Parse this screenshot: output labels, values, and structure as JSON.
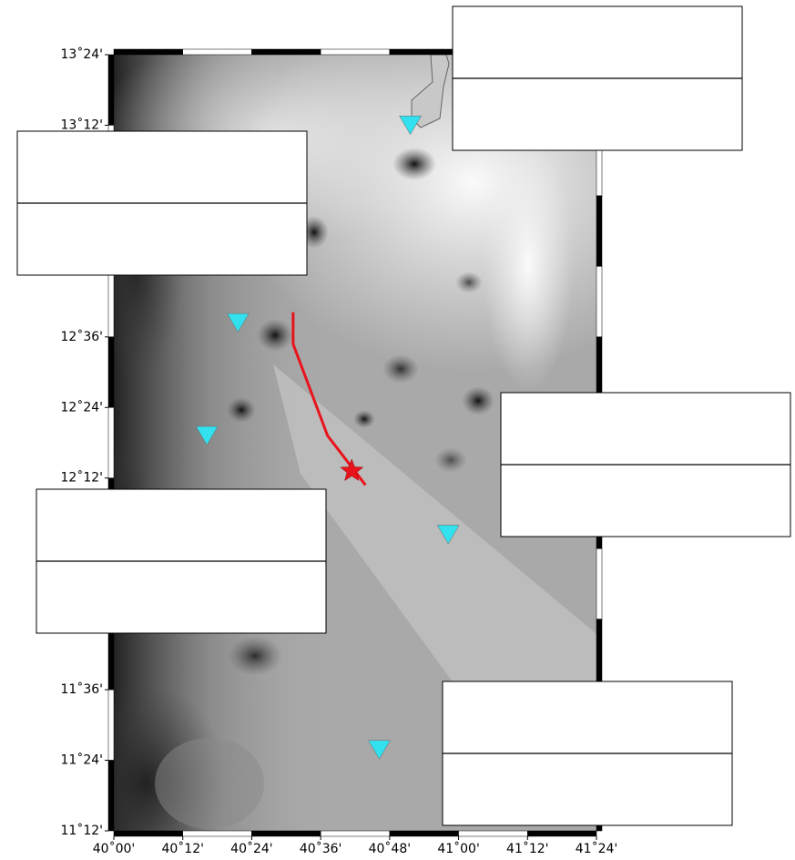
{
  "map": {
    "lon_range": [
      40.0,
      41.4
    ],
    "lat_range": [
      11.2,
      13.4
    ],
    "lat_ticks": [
      {
        "value": 13.4,
        "label": "13˚24'"
      },
      {
        "value": 13.2,
        "label": "13˚12'"
      },
      {
        "value": 12.6,
        "label": "12˚36'"
      },
      {
        "value": 12.4,
        "label": "12˚24'"
      },
      {
        "value": 12.2,
        "label": "12˚12'"
      },
      {
        "value": 11.6,
        "label": "11˚36'"
      },
      {
        "value": 11.4,
        "label": "11˚24'"
      },
      {
        "value": 11.2,
        "label": "11˚12'"
      }
    ],
    "lon_ticks": [
      {
        "value": 40.0,
        "label": "40˚00'"
      },
      {
        "value": 40.2,
        "label": "40˚12'"
      },
      {
        "value": 40.4,
        "label": "40˚24'"
      },
      {
        "value": 40.6,
        "label": "40˚36'"
      },
      {
        "value": 40.8,
        "label": "40˚48'"
      },
      {
        "value": 41.0,
        "label": "41˚00'"
      },
      {
        "value": 41.2,
        "label": "41˚12'"
      },
      {
        "value": 41.4,
        "label": "41˚24'"
      }
    ],
    "stations": {
      "color": "#33e0ee",
      "lon": [
        40.86,
        40.36,
        40.27,
        40.97,
        40.77
      ],
      "lat": [
        13.2,
        12.64,
        12.32,
        12.04,
        11.43
      ]
    },
    "event": {
      "color": "#e8141c",
      "lon": 40.69,
      "lat": 12.22
    },
    "fault": {
      "color": "#e8141c",
      "lon": [
        40.52,
        40.52,
        40.62,
        40.73
      ],
      "lat": [
        12.67,
        12.58,
        12.32,
        12.18
      ]
    }
  }
}
